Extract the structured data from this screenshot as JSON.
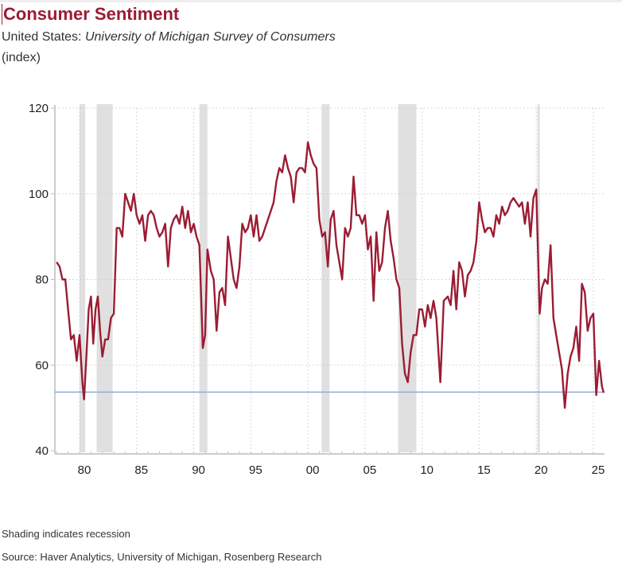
{
  "header": {
    "title": "Consumer Sentiment",
    "subtitle_prefix": "United States: ",
    "subtitle_italic": "University of Michigan Survey of Consumers",
    "units": "(index)"
  },
  "footer": {
    "note": "Shading indicates recession",
    "source": "Source: Haver Analytics, University of Michigan, Rosenberg Research"
  },
  "colors": {
    "line": "#9b1c33",
    "reference": "#8fb0d8",
    "recession": "#e0e0e0"
  },
  "chart_data": {
    "type": "line",
    "title": "Consumer Sentiment",
    "xlabel": "",
    "ylabel": "(index)",
    "xlim": [
      1977.8,
      2025.9
    ],
    "ylim": [
      40,
      120
    ],
    "yticks": [
      40,
      60,
      80,
      100,
      120
    ],
    "xticks": [
      {
        "year": 1980,
        "label": "80"
      },
      {
        "year": 1985,
        "label": "85"
      },
      {
        "year": 1990,
        "label": "90"
      },
      {
        "year": 1995,
        "label": "95"
      },
      {
        "year": 2000,
        "label": "00"
      },
      {
        "year": 2005,
        "label": "05"
      },
      {
        "year": 2010,
        "label": "10"
      },
      {
        "year": 2015,
        "label": "15"
      },
      {
        "year": 2020,
        "label": "20"
      },
      {
        "year": 2025,
        "label": "25"
      }
    ],
    "grid": true,
    "reference_line": 53.7,
    "recessions": [
      [
        1980.0,
        1980.5
      ],
      [
        1981.5,
        1982.9
      ],
      [
        1990.5,
        1991.2
      ],
      [
        2001.2,
        2001.9
      ],
      [
        2007.9,
        2009.5
      ],
      [
        2020.1,
        2020.3
      ]
    ],
    "series": [
      {
        "name": "Consumer Sentiment",
        "x": [
          1978.0,
          1978.25,
          1978.5,
          1978.75,
          1979.0,
          1979.25,
          1979.5,
          1979.75,
          1980.0,
          1980.25,
          1980.4,
          1980.6,
          1980.8,
          1981.0,
          1981.2,
          1981.4,
          1981.6,
          1981.8,
          1982.0,
          1982.25,
          1982.5,
          1982.75,
          1983.0,
          1983.25,
          1983.5,
          1983.75,
          1984.0,
          1984.25,
          1984.5,
          1984.75,
          1985.0,
          1985.25,
          1985.5,
          1985.75,
          1986.0,
          1986.25,
          1986.5,
          1986.75,
          1987.0,
          1987.25,
          1987.5,
          1987.75,
          1988.0,
          1988.25,
          1988.5,
          1988.75,
          1989.0,
          1989.25,
          1989.5,
          1989.75,
          1990.0,
          1990.25,
          1990.5,
          1990.8,
          1991.0,
          1991.2,
          1991.5,
          1991.75,
          1992.0,
          1992.25,
          1992.5,
          1992.75,
          1993.0,
          1993.25,
          1993.5,
          1993.75,
          1994.0,
          1994.25,
          1994.5,
          1994.75,
          1995.0,
          1995.25,
          1995.5,
          1995.75,
          1996.0,
          1996.25,
          1996.5,
          1996.75,
          1997.0,
          1997.25,
          1997.5,
          1997.75,
          1998.0,
          1998.25,
          1998.5,
          1998.75,
          1999.0,
          1999.25,
          1999.5,
          1999.75,
          2000.0,
          2000.25,
          2000.5,
          2000.75,
          2001.0,
          2001.25,
          2001.5,
          2001.75,
          2002.0,
          2002.25,
          2002.5,
          2002.75,
          2003.0,
          2003.25,
          2003.5,
          2003.75,
          2004.0,
          2004.25,
          2004.5,
          2004.75,
          2005.0,
          2005.25,
          2005.5,
          2005.75,
          2006.0,
          2006.25,
          2006.5,
          2006.75,
          2007.0,
          2007.25,
          2007.5,
          2007.75,
          2008.0,
          2008.25,
          2008.5,
          2008.75,
          2009.0,
          2009.25,
          2009.5,
          2009.75,
          2010.0,
          2010.25,
          2010.5,
          2010.75,
          2011.0,
          2011.25,
          2011.6,
          2011.9,
          2012.25,
          2012.5,
          2012.75,
          2013.0,
          2013.25,
          2013.5,
          2013.75,
          2014.0,
          2014.25,
          2014.5,
          2014.75,
          2015.0,
          2015.25,
          2015.5,
          2015.75,
          2016.0,
          2016.25,
          2016.5,
          2016.75,
          2017.0,
          2017.25,
          2017.5,
          2017.75,
          2018.0,
          2018.25,
          2018.5,
          2018.75,
          2019.0,
          2019.25,
          2019.5,
          2019.75,
          2020.0,
          2020.3,
          2020.5,
          2020.75,
          2021.0,
          2021.25,
          2021.5,
          2021.75,
          2022.0,
          2022.25,
          2022.5,
          2022.75,
          2023.0,
          2023.25,
          2023.5,
          2023.75,
          2024.0,
          2024.25,
          2024.5,
          2024.75,
          2025.0,
          2025.25,
          2025.5,
          2025.75,
          2025.9
        ],
        "values": [
          84,
          83,
          80,
          80,
          73,
          66,
          67,
          61,
          67,
          56,
          52,
          62,
          73,
          76,
          65,
          73,
          76,
          68,
          62,
          66,
          66,
          71,
          72,
          92,
          92,
          90,
          100,
          98,
          96,
          100,
          95,
          93,
          95,
          89,
          95,
          96,
          95,
          92,
          90,
          91,
          93,
          83,
          92,
          94,
          95,
          93,
          97,
          92,
          96,
          91,
          93,
          90,
          88,
          64,
          67,
          87,
          82,
          80,
          68,
          77,
          78,
          74,
          90,
          85,
          80,
          78,
          83,
          93,
          91,
          92,
          95,
          90,
          95,
          89,
          90,
          92,
          94,
          96,
          98,
          103,
          106,
          105,
          109,
          106,
          104,
          98,
          105,
          106,
          106,
          105,
          112,
          109,
          107,
          106,
          94,
          90,
          91,
          83,
          94,
          96,
          88,
          84,
          80,
          92,
          90,
          92,
          104,
          95,
          95,
          93,
          95,
          87,
          90,
          75,
          91,
          82,
          84,
          92,
          96,
          89,
          85,
          80,
          78,
          65,
          58,
          56,
          63,
          67,
          67,
          73,
          73,
          69,
          74,
          71,
          75,
          71,
          56,
          75,
          76,
          74,
          82,
          73,
          84,
          82,
          76,
          81,
          82,
          84,
          89,
          98,
          94,
          91,
          92,
          92,
          90,
          95,
          93,
          97,
          95,
          96,
          98,
          99,
          98,
          97,
          98,
          93,
          98,
          90,
          99,
          101,
          72,
          78,
          80,
          79,
          88,
          71,
          67,
          63,
          59,
          50,
          58,
          62,
          64,
          69,
          61,
          79,
          77,
          68,
          71,
          72,
          53,
          61,
          55,
          53.6
        ]
      }
    ]
  }
}
